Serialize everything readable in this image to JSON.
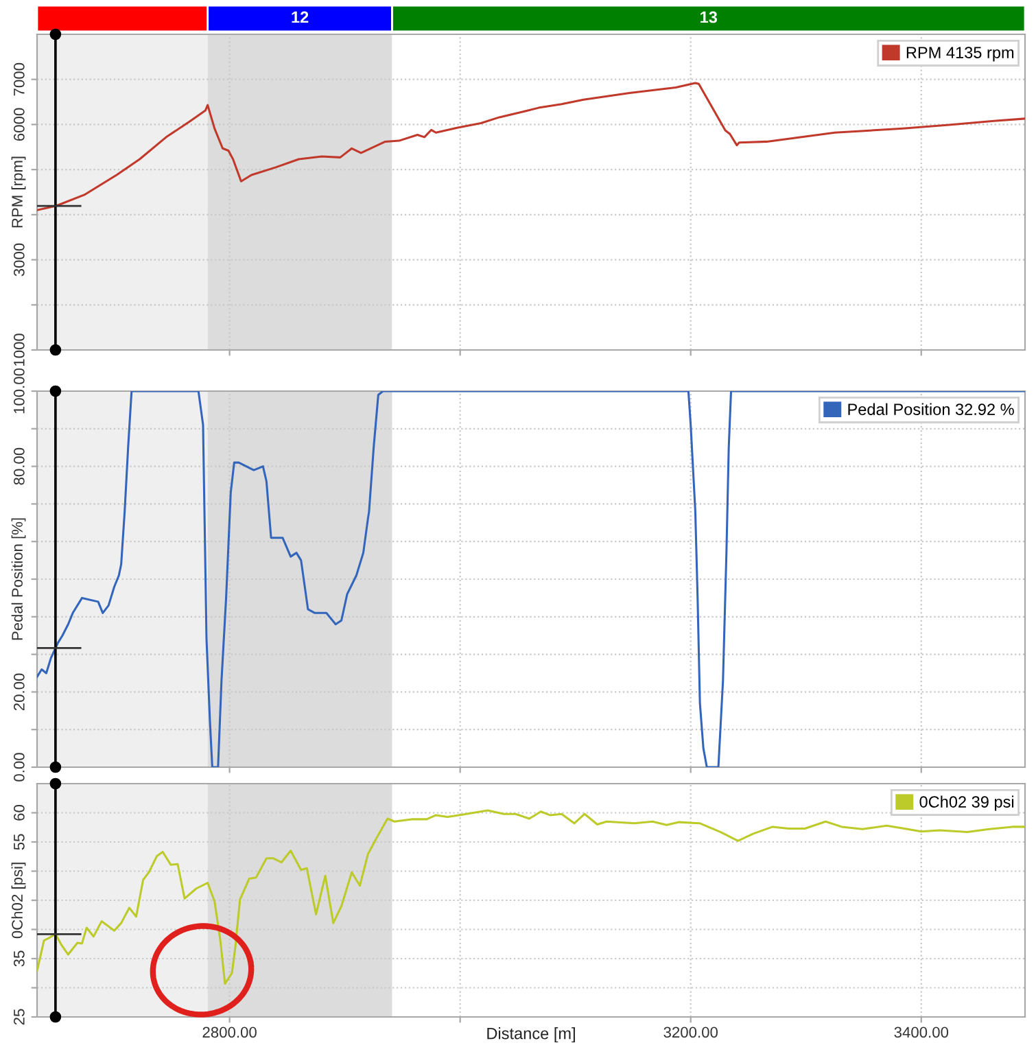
{
  "chart_data": [
    {
      "type": "line",
      "ylabel": "RPM [rpm]",
      "x": [
        2633,
        2650,
        2674,
        2702,
        2722,
        2745,
        2765,
        2779,
        2781,
        2787,
        2794,
        2799,
        2803,
        2810,
        2819,
        2840,
        2860,
        2880,
        2896,
        2906,
        2914,
        2935,
        2947,
        2963,
        2969,
        2975,
        2979,
        2998,
        3018,
        3034,
        3054,
        3068,
        3088,
        3107,
        3147,
        3187,
        3204,
        3207,
        3230,
        3234,
        3240,
        3242,
        3266,
        3325,
        3384,
        3424,
        3463,
        3490
      ],
      "series": [
        {
          "name": "RPM 4135 rpm",
          "color": "#c0392b",
          "values": [
            4100,
            4200,
            4440,
            4880,
            5230,
            5720,
            6060,
            6310,
            6430,
            5910,
            5470,
            5420,
            5230,
            4740,
            4880,
            5050,
            5230,
            5290,
            5270,
            5470,
            5370,
            5620,
            5640,
            5770,
            5720,
            5880,
            5820,
            5930,
            6030,
            6160,
            6280,
            6370,
            6450,
            6550,
            6700,
            6820,
            6920,
            6900,
            5870,
            5790,
            5540,
            5600,
            5620,
            5820,
            5910,
            5990,
            6080,
            6130
          ]
        }
      ],
      "xlim": [
        2633,
        3490
      ],
      "xticks": [
        2800,
        3000,
        3200,
        3400
      ],
      "ylim": [
        1000,
        8000
      ],
      "yticks": [
        1000,
        {
          "value": 2000,
          "label": null
        },
        3000,
        {
          "value": 4000,
          "label": null
        },
        {
          "value": 5000,
          "label": null
        },
        6000,
        7000
      ],
      "grid": true,
      "legend": "top right",
      "tick_labels": "y",
      "bands": [
        {
          "axis": "x",
          "from": 2633,
          "to": 2781,
          "color": "#efefef"
        },
        {
          "axis": "x",
          "from": 2781,
          "to": 2941,
          "color": "#dcdcdc",
          "label": "12"
        },
        {
          "axis": "x",
          "from": 2941,
          "to": 3490,
          "color": "#ffffff",
          "label": "13"
        }
      ],
      "ref_lines": [
        {
          "axis": "x",
          "value": 2649,
          "color": "#000000"
        }
      ]
    },
    {
      "type": "line",
      "ylabel": "Pedal Position [%]",
      "x": [
        2633,
        2637,
        2641,
        2645,
        2651,
        2655,
        2660,
        2664,
        2672,
        2686,
        2690,
        2695,
        2700,
        2704,
        2706,
        2709,
        2712,
        2715,
        2773,
        2777,
        2780,
        2783,
        2785,
        2790,
        2793,
        2797,
        2801,
        2804,
        2808,
        2821,
        2829,
        2832,
        2836,
        2846,
        2853,
        2858,
        2862,
        2868,
        2874,
        2884,
        2892,
        2897,
        2902,
        2910,
        2916,
        2920,
        2921,
        2925,
        2929,
        2933,
        3198,
        3200,
        3204,
        3206,
        3208,
        3211,
        3214,
        3224,
        3228,
        3231,
        3233,
        3235,
        3490
      ],
      "series": [
        {
          "name": "Pedal Position 32.92 %",
          "color": "#3366bb",
          "values": [
            24,
            26,
            25,
            29,
            33,
            35,
            38,
            41,
            45,
            44,
            41,
            43,
            48,
            51,
            54,
            68,
            85,
            100,
            100,
            91,
            34,
            12,
            0,
            0,
            23,
            45,
            73,
            81,
            81,
            79,
            80,
            76,
            61,
            61,
            56,
            57,
            55,
            42,
            41,
            41,
            38,
            39,
            46,
            51,
            57,
            66,
            68,
            85,
            99,
            100,
            100,
            91,
            68,
            45,
            17,
            5,
            0,
            0,
            23,
            57,
            85,
            100,
            100
          ]
        }
      ],
      "xlim": [
        2633,
        3490
      ],
      "xticks": [
        2800,
        3000,
        3200,
        3400
      ],
      "ylim": [
        0,
        100
      ],
      "yticks": [
        {
          "value": 0,
          "label": "0.00"
        },
        {
          "value": 10,
          "label": null
        },
        {
          "value": 20,
          "label": "20.00"
        },
        {
          "value": 30,
          "label": null
        },
        {
          "value": 40,
          "label": null
        },
        {
          "value": 50,
          "label": null
        },
        {
          "value": 60,
          "label": null
        },
        {
          "value": 70,
          "label": null
        },
        {
          "value": 80,
          "label": "80.00"
        },
        {
          "value": 90,
          "label": null
        },
        {
          "value": 100,
          "label": "100.00"
        }
      ],
      "grid": true,
      "legend": "top right",
      "tick_labels": "y",
      "bands": [
        {
          "axis": "x",
          "from": 2633,
          "to": 2781,
          "color": "#efefef"
        },
        {
          "axis": "x",
          "from": 2781,
          "to": 2941,
          "color": "#dcdcdc"
        }
      ],
      "ref_lines": [
        {
          "axis": "x",
          "value": 2649,
          "color": "#000000"
        }
      ]
    },
    {
      "type": "line",
      "ylabel": "0Ch02 [psi]",
      "xlabel": "Distance [m]",
      "x": [
        2633,
        2639,
        2643,
        2649,
        2654,
        2660,
        2668,
        2672,
        2676,
        2682,
        2689,
        2700,
        2706,
        2713,
        2719,
        2725,
        2730,
        2737,
        2742,
        2749,
        2755,
        2761,
        2771,
        2781,
        2787,
        2792,
        2796,
        2802,
        2805,
        2809,
        2817,
        2823,
        2832,
        2838,
        2845,
        2853,
        2862,
        2867,
        2875,
        2883,
        2890,
        2897,
        2906,
        2913,
        2920,
        2927,
        2937,
        2943,
        2959,
        2971,
        2979,
        2989,
        2999,
        3024,
        3038,
        3048,
        3060,
        3070,
        3078,
        3088,
        3099,
        3108,
        3119,
        3127,
        3151,
        3167,
        3179,
        3190,
        3208,
        3226,
        3241,
        3254,
        3271,
        3285,
        3299,
        3317,
        3331,
        3349,
        3370,
        3388,
        3400,
        3416,
        3440,
        3459,
        3479,
        3490
      ],
      "series": [
        {
          "name": "0Ch02 39 psi",
          "color": "#bccb2a",
          "values": [
            32.9,
            38.1,
            38.5,
            39.2,
            37.4,
            35.7,
            37.7,
            37.6,
            40.3,
            38.8,
            41.4,
            39.8,
            41.1,
            43.7,
            42.2,
            48.5,
            49.8,
            52.6,
            53.3,
            51.1,
            51.2,
            45.3,
            47.0,
            48.0,
            44.8,
            38.1,
            30.7,
            32.5,
            37.0,
            45.1,
            48.7,
            48.9,
            52.2,
            52.2,
            51.5,
            53.5,
            50.2,
            50.5,
            42.6,
            49.2,
            41.1,
            44.0,
            49.8,
            47.5,
            52.9,
            55.5,
            59.0,
            58.5,
            58.9,
            58.9,
            59.6,
            59.3,
            59.6,
            60.4,
            59.8,
            59.8,
            59.0,
            60.2,
            59.6,
            59.8,
            58.2,
            59.8,
            58.0,
            58.5,
            58.2,
            58.5,
            57.9,
            58.4,
            58.2,
            56.7,
            55.2,
            56.4,
            57.6,
            57.3,
            57.3,
            58.5,
            57.6,
            57.2,
            57.8,
            57.2,
            56.8,
            57.0,
            56.7,
            57.2,
            57.6,
            57.6
          ]
        }
      ],
      "xlim": [
        2633,
        3490
      ],
      "xticks": [
        {
          "value": 2800,
          "label": "2800.00"
        },
        {
          "value": 3000,
          "label": null
        },
        {
          "value": 3200,
          "label": "3200.00"
        },
        {
          "value": 3400,
          "label": "3400.00"
        }
      ],
      "ylim": [
        25,
        65
      ],
      "yticks": [
        25,
        {
          "value": 30,
          "label": null
        },
        35,
        {
          "value": 40,
          "label": null
        },
        {
          "value": 45,
          "label": null
        },
        {
          "value": 50,
          "label": null
        },
        55,
        60
      ],
      "grid": true,
      "legend": "top right",
      "bands": [
        {
          "axis": "x",
          "from": 2633,
          "to": 2781,
          "color": "#efefef"
        },
        {
          "axis": "x",
          "from": 2781,
          "to": 2941,
          "color": "#dcdcdc"
        }
      ],
      "ref_lines": [
        {
          "axis": "x",
          "value": 2649,
          "color": "#000000"
        }
      ]
    }
  ]
}
